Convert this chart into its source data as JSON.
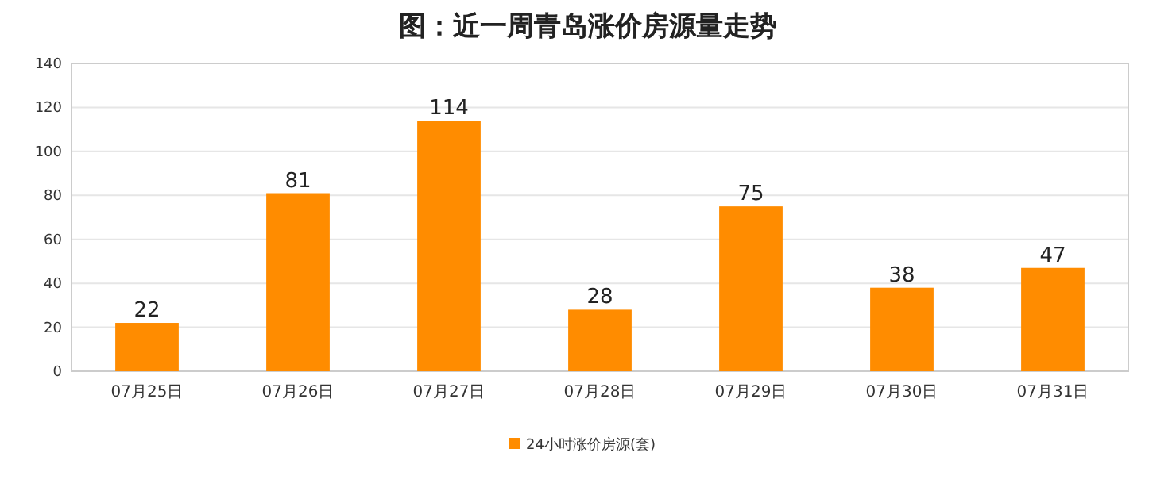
{
  "chart_data": {
    "type": "bar",
    "title": "图：近一周青岛涨价房源量走势",
    "categories": [
      "07月25日",
      "07月26日",
      "07月27日",
      "07月28日",
      "07月29日",
      "07月30日",
      "07月31日"
    ],
    "series": [
      {
        "name": "24小时涨价房源(套)",
        "color": "#ff8c00",
        "values": [
          22,
          81,
          114,
          28,
          75,
          38,
          47
        ]
      }
    ],
    "ylim": [
      0,
      140
    ],
    "yticks": [
      0,
      20,
      40,
      60,
      80,
      100,
      120,
      140
    ],
    "grid": "y",
    "legend": "bottom",
    "data_labels": true
  }
}
